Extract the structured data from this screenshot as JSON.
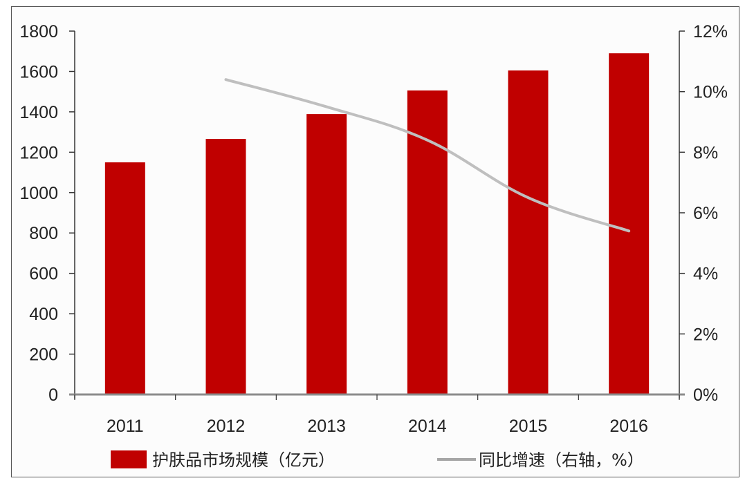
{
  "chart_data": {
    "type": "bar+line",
    "title": "",
    "categories": [
      "2011",
      "2012",
      "2013",
      "2014",
      "2015",
      "2016"
    ],
    "series": [
      {
        "name": "护肤品市场规模（亿元）",
        "type": "bar",
        "axis": "left",
        "color": "#c00000",
        "values": [
          1150,
          1266,
          1389,
          1506,
          1605,
          1690
        ]
      },
      {
        "name": "同比增速（右轴，%）",
        "type": "line",
        "axis": "right",
        "color": "#bfbfbf",
        "values": [
          null,
          10.4,
          9.5,
          8.4,
          6.5,
          5.4
        ]
      }
    ],
    "left_axis": {
      "min": 0,
      "max": 1800,
      "step": 200,
      "ticks": [
        "0",
        "200",
        "400",
        "600",
        "800",
        "1000",
        "1200",
        "1400",
        "1600",
        "1800"
      ]
    },
    "right_axis": {
      "min": 0,
      "max": 12,
      "step": 2,
      "ticks": [
        "0%",
        "2%",
        "4%",
        "6%",
        "8%",
        "10%",
        "12%"
      ]
    },
    "xlabel": "",
    "ylabel": "",
    "grid": false,
    "legend_position": "bottom"
  },
  "legend": {
    "bar_label": "护肤品市场规模（亿元）",
    "line_label": "同比增速（右轴，%）"
  }
}
